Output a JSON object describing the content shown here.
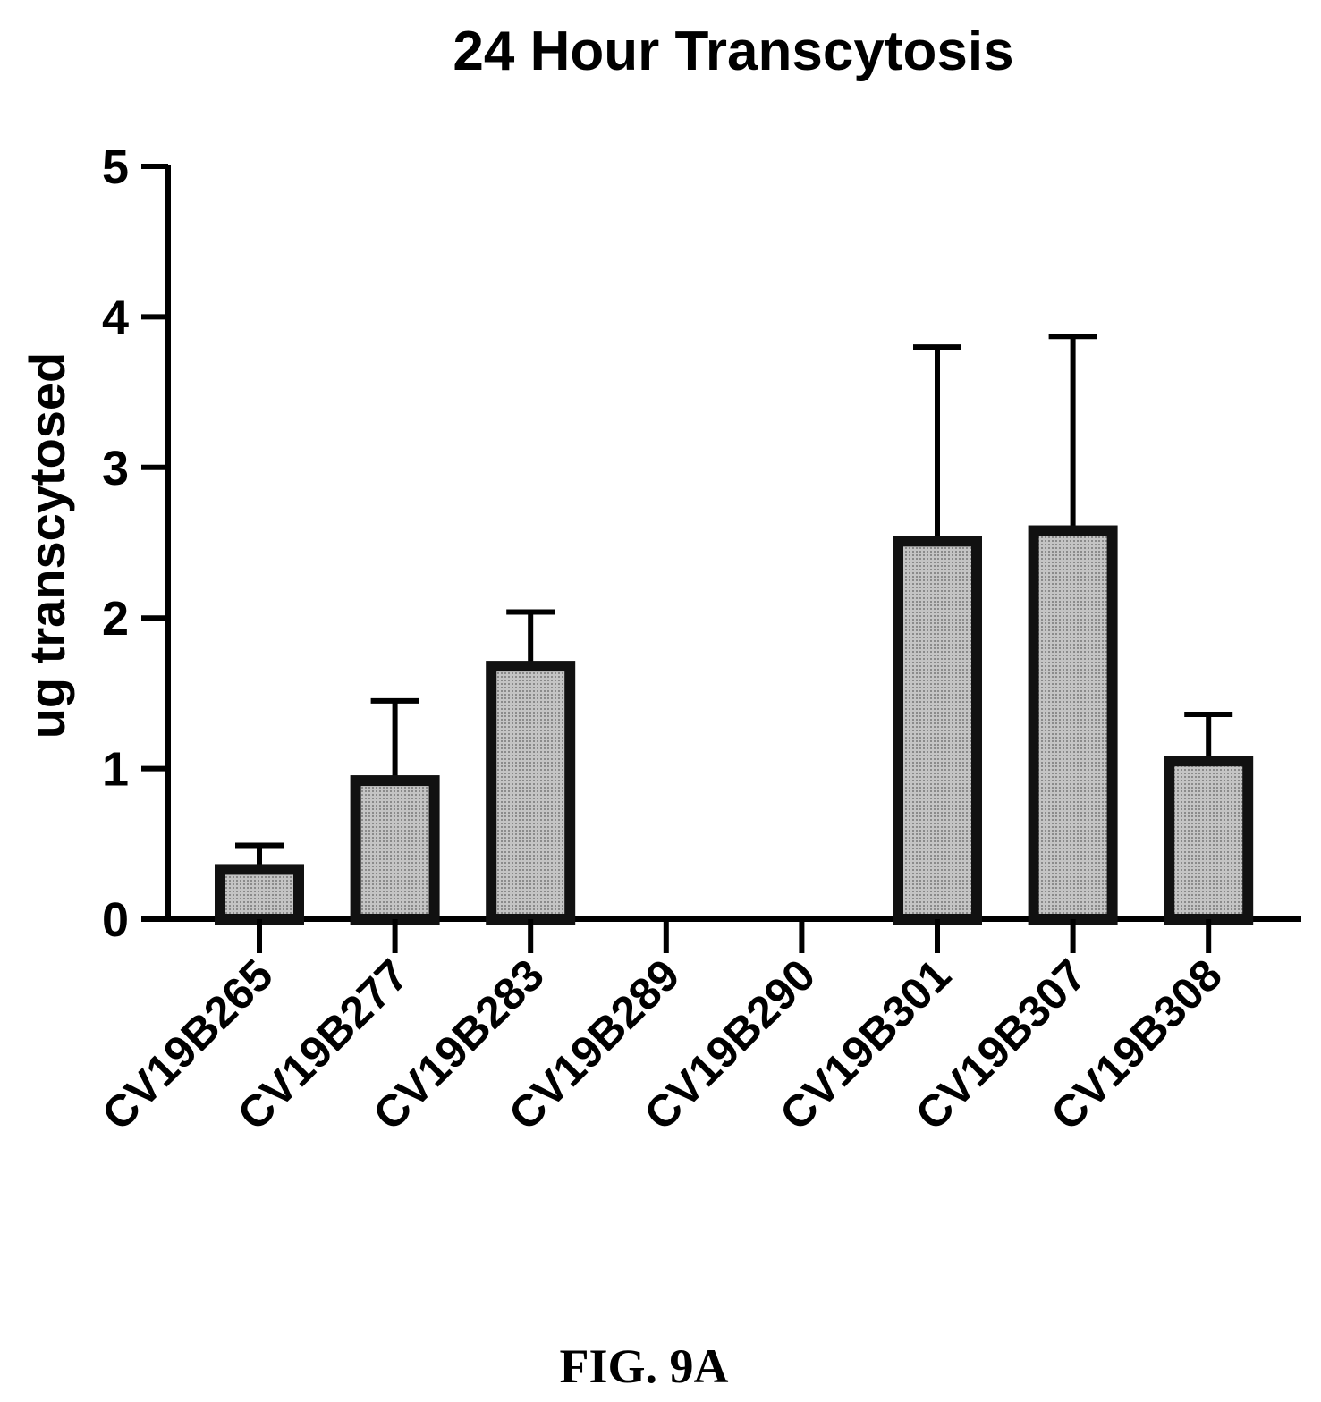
{
  "chart_data": {
    "type": "bar",
    "title": "24 Hour Transcytosis",
    "ylabel": "ug transcytosed",
    "xlabel": "",
    "ylim": [
      0,
      5
    ],
    "yticks": [
      "0",
      "1",
      "2",
      "3",
      "4",
      "5"
    ],
    "categories": [
      "CV19B265",
      "CV19B277",
      "CV19B283",
      "CV19B289",
      "CV19B290",
      "CV19B301",
      "CV19B307",
      "CV19B308"
    ],
    "values": [
      0.33,
      0.92,
      1.68,
      0,
      0,
      2.51,
      2.58,
      1.05
    ],
    "error_upper": [
      0.49,
      1.45,
      2.04,
      0,
      0,
      3.8,
      3.87,
      1.36
    ],
    "grid": false,
    "legend": "none",
    "bar_fill": "#b8b8b8",
    "bar_stroke": "#111111"
  },
  "figure_label": "FIG. 9A"
}
